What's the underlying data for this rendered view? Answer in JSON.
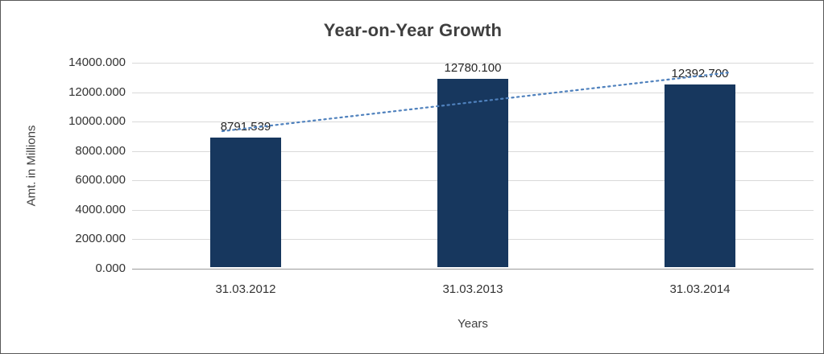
{
  "chart_data": {
    "type": "bar",
    "title": "Year-on-Year Growth",
    "xlabel": "Years",
    "ylabel": "Amt. in Millions",
    "categories": [
      "31.03.2012",
      "31.03.2013",
      "31.03.2014"
    ],
    "values": [
      8791.539,
      12780.1,
      12392.7
    ],
    "value_labels": [
      "8791.539",
      "12780.100",
      "12392.700"
    ],
    "ylim": [
      0,
      14000
    ],
    "ytick_step": 2000,
    "ytick_labels": [
      "0.000",
      "2000.000",
      "4000.000",
      "6000.000",
      "8000.000",
      "10000.000",
      "12000.000",
      "14000.000"
    ],
    "grid": true,
    "legend": "none",
    "bar_color": "#17375E",
    "trendline": {
      "type": "linear",
      "style": "dotted",
      "color": "#4F81BD"
    }
  }
}
